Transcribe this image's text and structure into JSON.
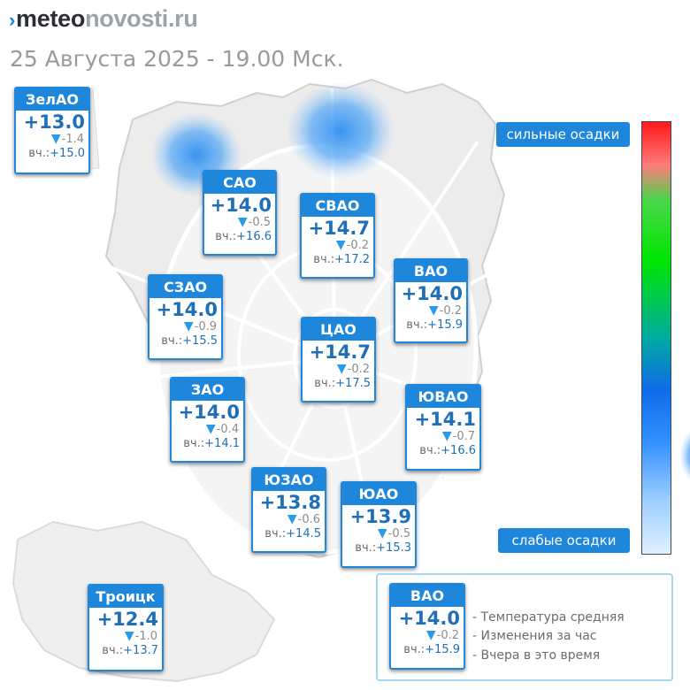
{
  "header": {
    "logo_mark": "›",
    "logo_dark": "meteo",
    "logo_light": "novosti.ru",
    "subtitle": "25 Августа 2025 - 19.00 Мск."
  },
  "districts": [
    {
      "name": "ЗелАО",
      "temp": "+13.0",
      "change": "-1.4",
      "yesterday_label": "вч.:",
      "yesterday": "+15.0"
    },
    {
      "name": "САО",
      "temp": "+14.0",
      "change": "-0.5",
      "yesterday_label": "вч.:",
      "yesterday": "+16.6"
    },
    {
      "name": "СВАО",
      "temp": "+14.7",
      "change": "-0.2",
      "yesterday_label": "вч.:",
      "yesterday": "+17.2"
    },
    {
      "name": "ВАО",
      "temp": "+14.0",
      "change": "-0.2",
      "yesterday_label": "вч.:",
      "yesterday": "+15.9"
    },
    {
      "name": "СЗАО",
      "temp": "+14.0",
      "change": "-0.9",
      "yesterday_label": "вч.:",
      "yesterday": "+15.5"
    },
    {
      "name": "ЦАО",
      "temp": "+14.7",
      "change": "-0.2",
      "yesterday_label": "вч.:",
      "yesterday": "+17.5"
    },
    {
      "name": "ЗАО",
      "temp": "+14.0",
      "change": "-0.4",
      "yesterday_label": "вч.:",
      "yesterday": "+14.1"
    },
    {
      "name": "ЮВАО",
      "temp": "+14.1",
      "change": "-0.7",
      "yesterday_label": "вч.:",
      "yesterday": "+16.6"
    },
    {
      "name": "ЮЗАО",
      "temp": "+13.8",
      "change": "-0.6",
      "yesterday_label": "вч.:",
      "yesterday": "+14.5"
    },
    {
      "name": "ЮАО",
      "temp": "+13.9",
      "change": "-0.5",
      "yesterday_label": "вч.:",
      "yesterday": "+15.3"
    },
    {
      "name": "Троицк",
      "temp": "+12.4",
      "change": "-1.0",
      "yesterday_label": "вч.:",
      "yesterday": "+13.7"
    }
  ],
  "precipitation_scale": {
    "top_label": "сильные осадки",
    "bottom_label": "слабые осадки",
    "colors": [
      "#ff1a1a",
      "#00e600",
      "#0f6be8",
      "#dff0ff"
    ]
  },
  "legend": {
    "sample": {
      "name": "ВАО",
      "temp": "+14.0",
      "change": "-0.2",
      "yesterday_label": "вч.:",
      "yesterday": "+15.9"
    },
    "line_temp": "- Температура средняя",
    "line_change": "- Изменения за час",
    "line_yesterday": "- Вчера в это время"
  },
  "colors": {
    "accent": "#1f87db",
    "temperature": "#1e6fb7",
    "precip_cloud": "#4aa3ff"
  },
  "icons": {
    "change": "down-triangle-icon"
  }
}
